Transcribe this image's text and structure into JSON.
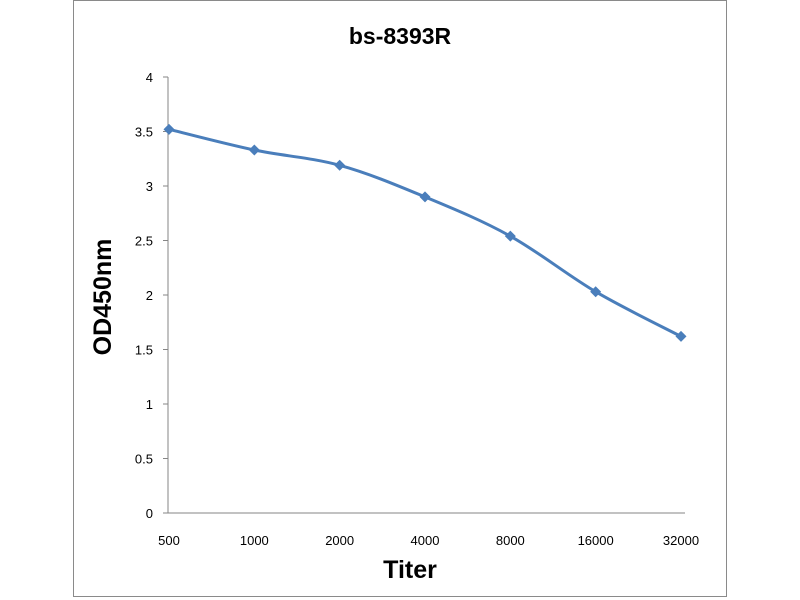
{
  "chart_data": {
    "type": "line",
    "title": "bs-8393R",
    "xlabel": "Titer",
    "ylabel": "OD450nm",
    "categories": [
      "500",
      "1000",
      "2000",
      "4000",
      "8000",
      "16000",
      "32000"
    ],
    "series": [
      {
        "values": [
          3.52,
          3.33,
          3.19,
          2.9,
          2.54,
          2.03,
          1.62
        ]
      }
    ],
    "yticks": [
      "0",
      "0.5",
      "1",
      "1.5",
      "2",
      "2.5",
      "3",
      "3.5",
      "4"
    ],
    "ylim": [
      0,
      4
    ],
    "grid": false,
    "legend": "none",
    "colors": {
      "line": "#4a7ebb",
      "marker": "#4a7ebb",
      "axis": "#868686"
    },
    "marker": "diamond"
  }
}
